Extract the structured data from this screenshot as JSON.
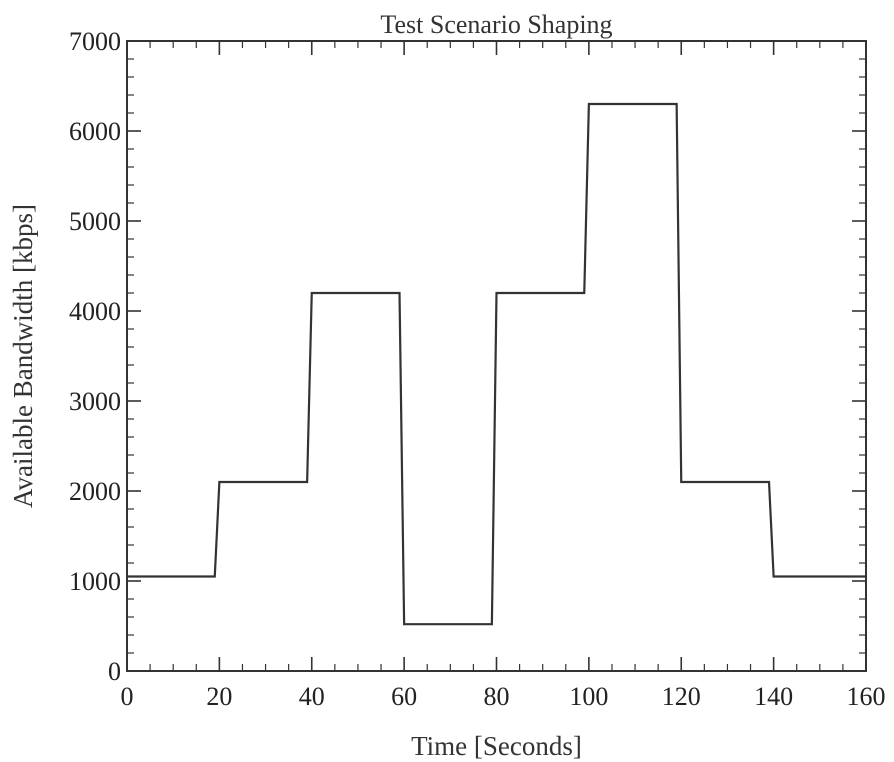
{
  "chart_data": {
    "type": "line",
    "title": "Test Scenario Shaping",
    "xlabel": "Time [Seconds]",
    "ylabel": "Available Bandwidth [kbps]",
    "xlim": [
      0,
      160
    ],
    "ylim": [
      0,
      7000
    ],
    "xticks": [
      0,
      20,
      40,
      60,
      80,
      100,
      120,
      140,
      160
    ],
    "yticks": [
      0,
      1000,
      2000,
      3000,
      4000,
      5000,
      6000,
      7000
    ],
    "grid": false,
    "legend": "none",
    "line_color": "#333333",
    "series": [
      {
        "x": [
          0,
          19,
          20,
          39,
          40,
          59,
          60,
          79,
          80,
          99,
          100,
          119,
          120,
          139,
          140,
          160
        ],
        "y": [
          1050,
          1050,
          2100,
          2100,
          4200,
          4200,
          520,
          520,
          4200,
          4200,
          6300,
          6300,
          2100,
          2100,
          1050,
          1050
        ]
      }
    ]
  }
}
